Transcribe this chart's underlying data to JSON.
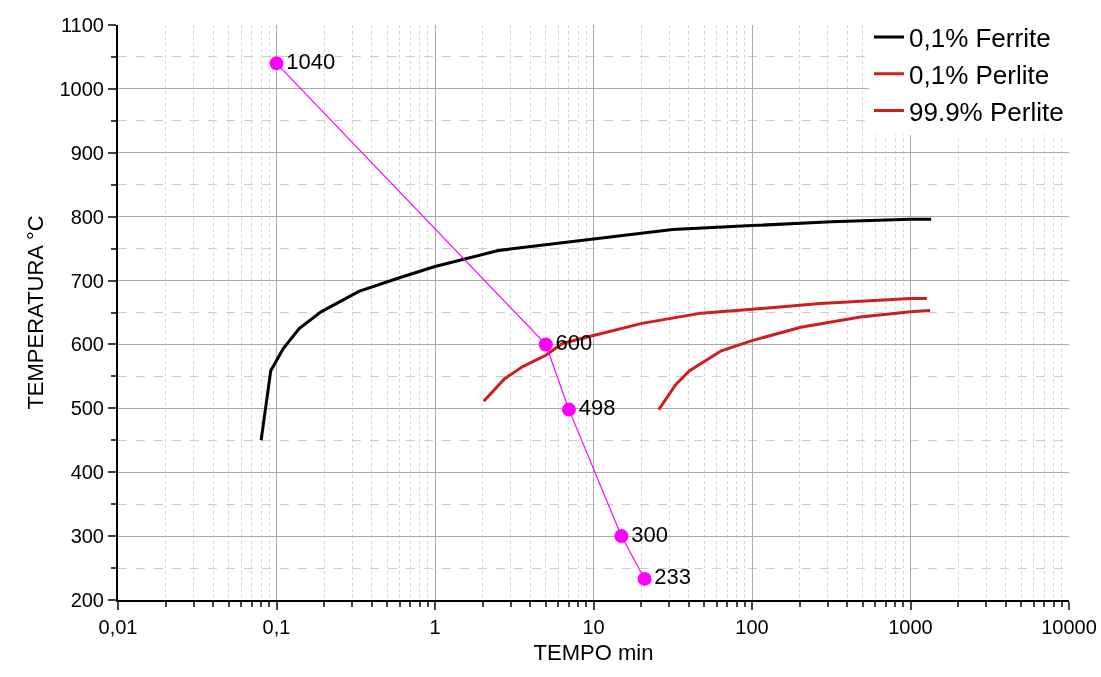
{
  "chart_data": {
    "type": "line",
    "xlabel": "TEMPO min",
    "ylabel": "TEMPERATURA °C",
    "log": "x",
    "grid": true,
    "legend": "top right",
    "marker": "none",
    "line_style": "solid",
    "xlim": [
      0.01,
      10000
    ],
    "xticks": [
      {
        "value": 0.01,
        "label": "0,01"
      },
      {
        "value": 0.1,
        "label": "0,1"
      },
      1,
      10,
      100,
      1000,
      10000
    ],
    "ylim": [
      200,
      1100
    ],
    "yticks": [
      200,
      300,
      400,
      500,
      600,
      700,
      800,
      900,
      1000,
      1100
    ],
    "series": [
      {
        "name": "0,1% Ferrite",
        "color": "#000000",
        "x": [
          0.08,
          0.092,
          0.11,
          0.139,
          0.191,
          0.331,
          0.59,
          1,
          2.51,
          10,
          31.6,
          100,
          316,
          1000,
          1350
        ],
        "values": [
          450,
          559,
          593,
          625,
          651,
          683,
          704,
          722,
          747,
          765,
          780,
          786,
          792,
          796,
          796
        ]
      },
      {
        "name": "0,1% Perlite",
        "color": "#cc1f1f",
        "x": [
          2.03,
          2.74,
          3.55,
          5,
          6.4,
          10,
          20.2,
          47.9,
          100,
          270,
          1000,
          1270
        ],
        "values": [
          511,
          546,
          565,
          583,
          602,
          614,
          633,
          649,
          655,
          664,
          672,
          672
        ]
      },
      {
        "name": "99.9% Perlite",
        "color": "#cc1f1f",
        "x": [
          25.8,
          33,
          40.4,
          64,
          100,
          203,
          483,
          1000,
          1330
        ],
        "values": [
          498,
          537,
          559,
          590,
          606,
          627,
          643,
          651,
          653
        ]
      },
      {
        "type": "scatter",
        "color": "#ff00ff",
        "marker": "circle",
        "line_style": "solid",
        "x": [
          0.1,
          5,
          7,
          15,
          21
        ],
        "values": [
          1040,
          600,
          498,
          300,
          233
        ],
        "value_labels": [
          "1040",
          "600",
          "498",
          "300",
          "233"
        ]
      }
    ]
  }
}
